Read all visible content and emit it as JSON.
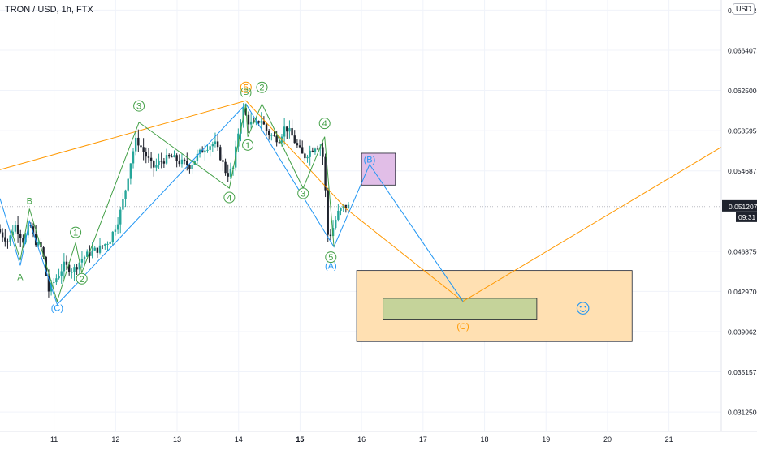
{
  "symbol": "TRON / USD, 1h, FTX",
  "currency": "USD",
  "colors": {
    "up": "#26a69a",
    "down": "#1e222d",
    "orange": "#ff9800",
    "blue": "#2196f3",
    "green": "#43a047",
    "purple_box": "#e1bee7",
    "orange_box": "#ffe0b2",
    "olive_box": "#c5d39a",
    "grid": "#f0f3fa",
    "axis_text": "#131722"
  },
  "price_axis": {
    "ticks": [
      {
        "value": 0.0703125,
        "label": "0.0703125"
      },
      {
        "value": 0.0664075,
        "label": "0.0664075"
      },
      {
        "value": 0.0625,
        "label": "0.0625000"
      },
      {
        "value": 0.058595,
        "label": "0.0585950"
      },
      {
        "value": 0.0546875,
        "label": "0.0546875"
      },
      {
        "value": 0.046875,
        "label": "0.0468750"
      },
      {
        "value": 0.04297,
        "label": "0.0429700"
      },
      {
        "value": 0.0390625,
        "label": "0.0390625"
      },
      {
        "value": 0.035157,
        "label": "0.0351575"
      },
      {
        "value": 0.03125,
        "label": "0.0312500"
      }
    ],
    "last_price": {
      "value": 0.0512075,
      "label": "0.0512075",
      "countdown": "09:31"
    }
  },
  "time_axis": {
    "ticks": [
      {
        "x": 11,
        "label": "11",
        "bold": false
      },
      {
        "x": 12,
        "label": "12",
        "bold": false
      },
      {
        "x": 13,
        "label": "13",
        "bold": false
      },
      {
        "x": 14,
        "label": "14",
        "bold": false
      },
      {
        "x": 15,
        "label": "15",
        "bold": true
      },
      {
        "x": 16,
        "label": "16",
        "bold": false
      },
      {
        "x": 17,
        "label": "17",
        "bold": false
      },
      {
        "x": 18,
        "label": "18",
        "bold": false
      },
      {
        "x": 19,
        "label": "19",
        "bold": false
      },
      {
        "x": 20,
        "label": "20",
        "bold": false
      },
      {
        "x": 21,
        "label": "21",
        "bold": false
      }
    ]
  },
  "chart_data": {
    "type": "candlestick",
    "title": "TRON / USD, 1h, FTX",
    "x_unit": "day (June)",
    "xlim": [
      10.12,
      21.85
    ],
    "ylim": [
      0.02937,
      0.07129
    ],
    "grid": true,
    "series_anchor_points": [
      [
        10.12,
        0.049
      ],
      [
        10.3,
        0.0478
      ],
      [
        10.4,
        0.0495
      ],
      [
        10.55,
        0.0478
      ],
      [
        10.65,
        0.0495
      ],
      [
        10.72,
        0.048
      ],
      [
        10.85,
        0.047
      ],
      [
        10.95,
        0.043
      ],
      [
        11.05,
        0.044
      ],
      [
        11.2,
        0.0455
      ],
      [
        11.35,
        0.045
      ],
      [
        11.5,
        0.0462
      ],
      [
        11.65,
        0.0468
      ],
      [
        11.8,
        0.0472
      ],
      [
        11.95,
        0.048
      ],
      [
        12.1,
        0.0502
      ],
      [
        12.2,
        0.0528
      ],
      [
        12.3,
        0.056
      ],
      [
        12.38,
        0.0578
      ],
      [
        12.5,
        0.0565
      ],
      [
        12.65,
        0.055
      ],
      [
        12.8,
        0.0557
      ],
      [
        12.95,
        0.056
      ],
      [
        13.1,
        0.0555
      ],
      [
        13.25,
        0.0552
      ],
      [
        13.35,
        0.056
      ],
      [
        13.5,
        0.057
      ],
      [
        13.65,
        0.0574
      ],
      [
        13.75,
        0.056
      ],
      [
        13.85,
        0.0543
      ],
      [
        13.95,
        0.0548
      ],
      [
        14.05,
        0.059
      ],
      [
        14.12,
        0.0606
      ],
      [
        14.2,
        0.0595
      ],
      [
        14.3,
        0.059
      ],
      [
        14.4,
        0.0598
      ],
      [
        14.5,
        0.0585
      ],
      [
        14.6,
        0.058
      ],
      [
        14.7,
        0.0578
      ],
      [
        14.8,
        0.059
      ],
      [
        14.9,
        0.0582
      ],
      [
        15.0,
        0.057
      ],
      [
        15.1,
        0.056
      ],
      [
        15.2,
        0.0566
      ],
      [
        15.3,
        0.0572
      ],
      [
        15.4,
        0.057
      ],
      [
        15.45,
        0.053
      ],
      [
        15.5,
        0.048
      ],
      [
        15.58,
        0.0492
      ],
      [
        15.65,
        0.0505
      ],
      [
        15.75,
        0.0512
      ],
      [
        15.8,
        0.0512
      ]
    ],
    "wave_labels": [
      {
        "text": "B",
        "x": 10.6,
        "y": 0.0518,
        "color": "green",
        "circled": false
      },
      {
        "text": "A",
        "x": 10.45,
        "y": 0.0444,
        "color": "green",
        "circled": false
      },
      {
        "text": "(C)",
        "x": 11.05,
        "y": 0.0414,
        "color": "blue",
        "circled": false
      },
      {
        "text": "1",
        "x": 11.35,
        "y": 0.0487,
        "color": "green",
        "circled": true
      },
      {
        "text": "2",
        "x": 11.45,
        "y": 0.0442,
        "color": "green",
        "circled": true
      },
      {
        "text": "3",
        "x": 12.38,
        "y": 0.061,
        "color": "green",
        "circled": true
      },
      {
        "text": "4",
        "x": 13.85,
        "y": 0.0521,
        "color": "green",
        "circled": true
      },
      {
        "text": "5",
        "x": 14.12,
        "y": 0.0628,
        "color": "orange",
        "circled": true
      },
      {
        "text": "(B)",
        "x": 14.12,
        "y": 0.0624,
        "color": "green",
        "circled": false
      },
      {
        "text": "1",
        "x": 14.15,
        "y": 0.0572,
        "color": "green",
        "circled": true
      },
      {
        "text": "2",
        "x": 14.38,
        "y": 0.0628,
        "color": "green",
        "circled": true
      },
      {
        "text": "3",
        "x": 15.05,
        "y": 0.0525,
        "color": "green",
        "circled": true
      },
      {
        "text": "4",
        "x": 15.4,
        "y": 0.0593,
        "color": "green",
        "circled": true
      },
      {
        "text": "5",
        "x": 15.5,
        "y": 0.0463,
        "color": "green",
        "circled": true
      },
      {
        "text": "(A)",
        "x": 15.5,
        "y": 0.0455,
        "color": "blue",
        "circled": false
      },
      {
        "text": "(B)",
        "x": 16.13,
        "y": 0.0558,
        "color": "blue",
        "circled": false
      },
      {
        "text": "(C)",
        "x": 17.65,
        "y": 0.0396,
        "color": "orange",
        "circled": false
      }
    ],
    "paths": [
      {
        "name": "orange-projection",
        "color": "orange",
        "points": [
          [
            10.12,
            0.0548
          ],
          [
            14.12,
            0.0615
          ],
          [
            15.75,
            0.051
          ],
          [
            17.65,
            0.042
          ],
          [
            21.85,
            0.057
          ]
        ]
      },
      {
        "name": "blue-waves",
        "color": "blue",
        "points": [
          [
            10.12,
            0.052
          ],
          [
            10.45,
            0.0455
          ],
          [
            10.6,
            0.0498
          ],
          [
            11.05,
            0.0417
          ],
          [
            14.12,
            0.0612
          ],
          [
            15.55,
            0.0473
          ],
          [
            16.13,
            0.0553
          ],
          [
            17.65,
            0.042
          ]
        ]
      },
      {
        "name": "green-waves",
        "color": "green",
        "points": [
          [
            10.3,
            0.049
          ],
          [
            10.45,
            0.046
          ],
          [
            10.6,
            0.051
          ],
          [
            11.05,
            0.042
          ],
          [
            11.35,
            0.0477
          ],
          [
            11.45,
            0.0448
          ],
          [
            12.38,
            0.0594
          ],
          [
            13.85,
            0.053
          ],
          [
            14.12,
            0.0612
          ],
          [
            14.15,
            0.058
          ],
          [
            14.38,
            0.0612
          ],
          [
            15.05,
            0.053
          ],
          [
            15.4,
            0.058
          ],
          [
            15.55,
            0.0473
          ]
        ]
      }
    ],
    "zones": [
      {
        "name": "wave-b-target-zone",
        "color": "purple_box",
        "x1": 16.0,
        "x2": 16.55,
        "y1": 0.0564,
        "y2": 0.0533
      },
      {
        "name": "wave-c-target-zone",
        "color": "orange_box",
        "x1": 15.92,
        "x2": 20.4,
        "y1": 0.045,
        "y2": 0.0381
      },
      {
        "name": "wave-c-core-zone",
        "color": "olive_box",
        "x1": 16.35,
        "x2": 18.85,
        "y1": 0.0423,
        "y2": 0.0402
      }
    ],
    "smiley": {
      "x": 19.6,
      "y": 0.0414,
      "glyph": "☺"
    }
  }
}
